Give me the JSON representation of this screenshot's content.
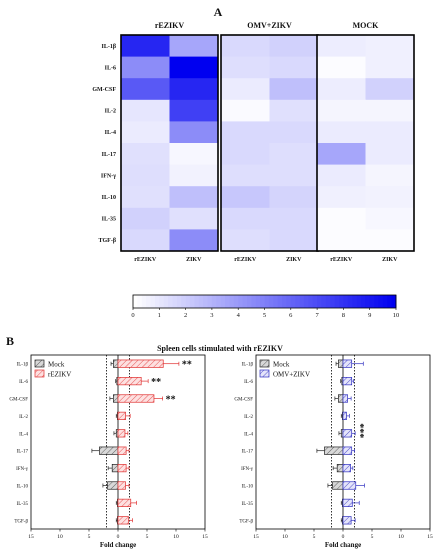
{
  "panel_a_label": "A",
  "panel_b_label": "B",
  "panel_b_title": "Spleen cells stimulated with rEZIKV",
  "chart_data": [
    {
      "type": "heatmap",
      "rows": [
        "IL-1β",
        "IL-6",
        "GM-CSF",
        "IL-2",
        "IL-4",
        "IL-17",
        "IFN-γ",
        "IL-10",
        "IL-35",
        "TGF-β"
      ],
      "groups": [
        {
          "name": "rEZIKV",
          "columns": [
            "rEZIKV",
            "ZIKV"
          ],
          "values": [
            [
              8.5,
              3.5
            ],
            [
              4.5,
              10.0
            ],
            [
              6.5,
              8.5
            ],
            [
              1.0,
              7.5
            ],
            [
              0.8,
              4.5
            ],
            [
              1.2,
              0.3
            ],
            [
              1.3,
              0.5
            ],
            [
              1.2,
              2.5
            ],
            [
              1.8,
              1.2
            ],
            [
              1.5,
              4.5
            ]
          ]
        },
        {
          "name": "OMV+ZIKV",
          "columns": [
            "rEZIKV",
            "ZIKV"
          ],
          "values": [
            [
              1.5,
              1.8
            ],
            [
              1.3,
              1.5
            ],
            [
              0.8,
              2.5
            ],
            [
              0.2,
              1.2
            ],
            [
              1.5,
              1.5
            ],
            [
              1.5,
              1.3
            ],
            [
              1.3,
              1.3
            ],
            [
              2.2,
              1.7
            ],
            [
              1.5,
              1.5
            ],
            [
              1.3,
              1.5
            ]
          ]
        },
        {
          "name": "MOCK",
          "columns": [
            "rEZIKV",
            "ZIKV"
          ],
          "values": [
            [
              0.7,
              0.6
            ],
            [
              0.1,
              0.6
            ],
            [
              0.7,
              1.8
            ],
            [
              0.4,
              0.4
            ],
            [
              0.8,
              0.8
            ],
            [
              3.5,
              0.8
            ],
            [
              0.8,
              0.4
            ],
            [
              0.6,
              0.5
            ],
            [
              0.1,
              0.3
            ],
            [
              0.1,
              0.1
            ]
          ]
        }
      ],
      "scale": {
        "min": 0,
        "max": 10,
        "ticks": [
          0,
          1,
          2,
          3,
          4,
          5,
          6,
          7,
          8,
          9,
          10
        ],
        "low_color": "#ffffff",
        "high_color": "#0000f0"
      }
    },
    {
      "type": "bar",
      "orientation": "horizontal",
      "categories": [
        "IL-1β",
        "IL-6",
        "GM-CSF",
        "IL-2",
        "IL-4",
        "IL-17",
        "IFN-γ",
        "IL-10",
        "IL-35",
        "TGF-β"
      ],
      "series": [
        {
          "name": "Mock",
          "color": "#222222",
          "values": [
            0.8,
            0.2,
            0.8,
            0.1,
            0.3,
            3.2,
            1.0,
            1.8,
            0.1,
            0.1
          ],
          "errors": [
            0.4,
            0.2,
            0.6,
            0.2,
            0.4,
            1.3,
            0.7,
            0.8,
            0.2,
            0.2
          ]
        },
        {
          "name": "rEZIKV",
          "color": "#e03030",
          "values": [
            7.8,
            4.0,
            6.2,
            1.3,
            1.2,
            1.4,
            1.4,
            1.3,
            2.2,
            1.8
          ],
          "errors": [
            2.7,
            1.2,
            1.5,
            0.8,
            0.5,
            0.5,
            0.5,
            0.6,
            1.0,
            0.7
          ]
        }
      ],
      "significance": {
        "IL-1β": "**",
        "IL-6": "**",
        "GM-CSF": "**"
      },
      "xlim": [
        -15,
        15
      ],
      "xticks": [
        15,
        10,
        5,
        0,
        5,
        10,
        15
      ],
      "xlabel": "Fold change",
      "reference_lines": [
        -2,
        2
      ]
    },
    {
      "type": "bar",
      "orientation": "horizontal",
      "categories": [
        "IL-1β",
        "IL-6",
        "GM-CSF",
        "IL-2",
        "IL-4",
        "IL-17",
        "IFN-γ",
        "IL-10",
        "IL-35",
        "TGF-β"
      ],
      "series": [
        {
          "name": "Mock",
          "color": "#222222",
          "values": [
            0.8,
            0.2,
            0.8,
            0.1,
            0.3,
            3.2,
            1.0,
            1.8,
            0.1,
            0.1
          ],
          "errors": [
            0.4,
            0.2,
            0.6,
            0.2,
            0.4,
            1.3,
            0.7,
            0.8,
            0.2,
            0.2
          ]
        },
        {
          "name": "OMV+ZIKV",
          "color": "#3030c0",
          "values": [
            1.5,
            1.5,
            0.8,
            0.6,
            1.5,
            1.5,
            1.3,
            2.2,
            1.6,
            1.4
          ],
          "errors": [
            2.0,
            0.3,
            0.6,
            0.5,
            0.6,
            0.5,
            0.4,
            1.5,
            1.2,
            0.7
          ]
        }
      ],
      "significance": {
        "IL-4": "***"
      },
      "xlim": [
        -15,
        15
      ],
      "xticks": [
        15,
        10,
        5,
        0,
        5,
        10,
        15
      ],
      "xlabel": "Fold change",
      "reference_lines": [
        -2,
        2
      ]
    }
  ]
}
